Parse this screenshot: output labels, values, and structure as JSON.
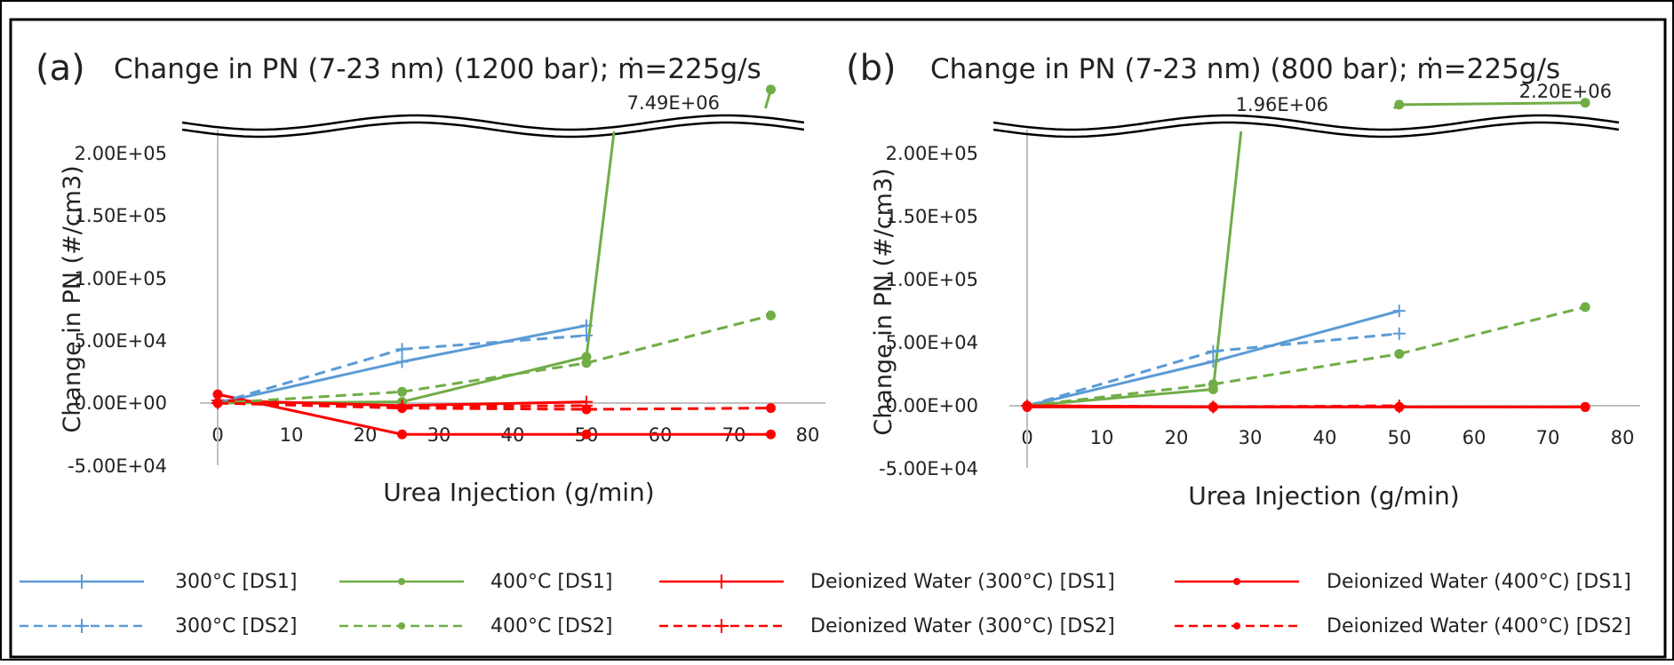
{
  "charts": [
    {
      "panel_label": "(a)",
      "title": "Change in PN (7-23 nm) (1200 bar); ṁ=225g/s",
      "ylabel": "Change in PN (#/cm3)",
      "xlabel": "Urea Injection (g/min)",
      "x_ticks": [
        "0",
        "10",
        "20",
        "30",
        "40",
        "50",
        "60",
        "70",
        "80"
      ],
      "y_ticks": [
        "2.00E+05",
        "1.50E+05",
        "1.00E+05",
        "5.00E+04",
        "0.00E+00",
        "-5.00E+04"
      ],
      "break_label": "7.49E+06"
    },
    {
      "panel_label": "(b)",
      "title": "Change in PN (7-23 nm) (800 bar); ṁ=225g/s",
      "ylabel": "Change in PN (#/cm3)",
      "xlabel": "Urea Injection (g/min)",
      "x_ticks": [
        "0",
        "10",
        "20",
        "30",
        "40",
        "50",
        "60",
        "70",
        "80"
      ],
      "y_ticks": [
        "2.00E+05",
        "1.50E+05",
        "1.00E+05",
        "5.00E+04",
        "0.00E+00",
        "-5.00E+04"
      ],
      "break_labels": [
        "1.96E+06",
        "2.20E+06"
      ]
    }
  ],
  "legend": [
    "300°C [DS1]",
    "400°C [DS1]",
    "Deionized Water (300°C) [DS1]",
    "Deionized Water (400°C) [DS1]",
    "300°C [DS2]",
    "400°C [DS2]",
    "Deionized Water (300°C) [DS2]",
    "Deionized Water (400°C) [DS2]"
  ],
  "colors": {
    "blue": "#5b9bd5",
    "green": "#70ad47",
    "red": "#ff0000",
    "axis": "#bfbfbf"
  },
  "chart_data": [
    {
      "type": "line",
      "xlim": [
        0,
        80
      ],
      "ylim": [
        -50000,
        200000
      ],
      "y_axis_break": true,
      "series": [
        {
          "name": "300°C [DS1]",
          "color": "#5b9bd5",
          "dash": false,
          "marker": "plus",
          "x": [
            0,
            25,
            50
          ],
          "y": [
            0,
            33000,
            62000
          ]
        },
        {
          "name": "400°C [DS1]",
          "color": "#70ad47",
          "dash": false,
          "marker": "dot",
          "x": [
            0,
            25,
            50,
            75
          ],
          "y": [
            0,
            1000,
            37000,
            7490000
          ]
        },
        {
          "name": "Deionized Water (300°C) [DS1]",
          "color": "#ff0000",
          "dash": false,
          "marker": "plus",
          "x": [
            0,
            25,
            50
          ],
          "y": [
            2000,
            -2000,
            1000
          ]
        },
        {
          "name": "Deionized Water (400°C) [DS1]",
          "color": "#ff0000",
          "dash": false,
          "marker": "dot",
          "x": [
            0,
            25,
            50,
            75
          ],
          "y": [
            7000,
            -25000,
            -25000,
            -25000
          ]
        },
        {
          "name": "300°C [DS2]",
          "color": "#5b9bd5",
          "dash": true,
          "marker": "plus",
          "x": [
            0,
            25,
            50
          ],
          "y": [
            0,
            43000,
            54000
          ]
        },
        {
          "name": "400°C [DS2]",
          "color": "#70ad47",
          "dash": true,
          "marker": "dot",
          "x": [
            0,
            25,
            50,
            75
          ],
          "y": [
            0,
            9000,
            32000,
            70000
          ]
        },
        {
          "name": "Deionized Water (300°C) [DS2]",
          "color": "#ff0000",
          "dash": true,
          "marker": "plus",
          "x": [
            0,
            25,
            50
          ],
          "y": [
            0,
            -3000,
            -2000
          ]
        },
        {
          "name": "Deionized Water (400°C) [DS2]",
          "color": "#ff0000",
          "dash": true,
          "marker": "dot",
          "x": [
            0,
            25,
            50,
            75
          ],
          "y": [
            0,
            -4000,
            -5000,
            -4000
          ]
        }
      ]
    },
    {
      "type": "line",
      "xlim": [
        0,
        80
      ],
      "ylim": [
        -50000,
        200000
      ],
      "y_axis_break": true,
      "series": [
        {
          "name": "300°C [DS1]",
          "color": "#5b9bd5",
          "dash": false,
          "marker": "plus",
          "x": [
            0,
            25,
            50
          ],
          "y": [
            0,
            35000,
            75000
          ]
        },
        {
          "name": "400°C [DS1]",
          "color": "#70ad47",
          "dash": false,
          "marker": "dot",
          "x": [
            0,
            25,
            50,
            75
          ],
          "y": [
            0,
            13000,
            1960000,
            2200000
          ]
        },
        {
          "name": "Deionized Water (300°C) [DS1]",
          "color": "#ff0000",
          "dash": false,
          "marker": "plus",
          "x": [
            0,
            25,
            50
          ],
          "y": [
            0,
            -1000,
            -1000
          ]
        },
        {
          "name": "Deionized Water (400°C) [DS1]",
          "color": "#ff0000",
          "dash": false,
          "marker": "dot",
          "x": [
            0,
            25,
            50,
            75
          ],
          "y": [
            -1000,
            -1000,
            -1000,
            -1000
          ]
        },
        {
          "name": "300°C [DS2]",
          "color": "#5b9bd5",
          "dash": true,
          "marker": "plus",
          "x": [
            0,
            25,
            50
          ],
          "y": [
            0,
            43000,
            57000
          ]
        },
        {
          "name": "400°C [DS2]",
          "color": "#70ad47",
          "dash": true,
          "marker": "dot",
          "x": [
            0,
            25,
            50,
            75
          ],
          "y": [
            0,
            17000,
            41000,
            78000
          ]
        },
        {
          "name": "Deionized Water (300°C) [DS2]",
          "color": "#ff0000",
          "dash": true,
          "marker": "plus",
          "x": [
            0,
            25,
            50
          ],
          "y": [
            0,
            -1000,
            0
          ]
        },
        {
          "name": "Deionized Water (400°C) [DS2]",
          "color": "#ff0000",
          "dash": true,
          "marker": "dot",
          "x": [
            0,
            25,
            50,
            75
          ],
          "y": [
            0,
            -1000,
            -1000,
            -1000
          ]
        }
      ]
    }
  ]
}
